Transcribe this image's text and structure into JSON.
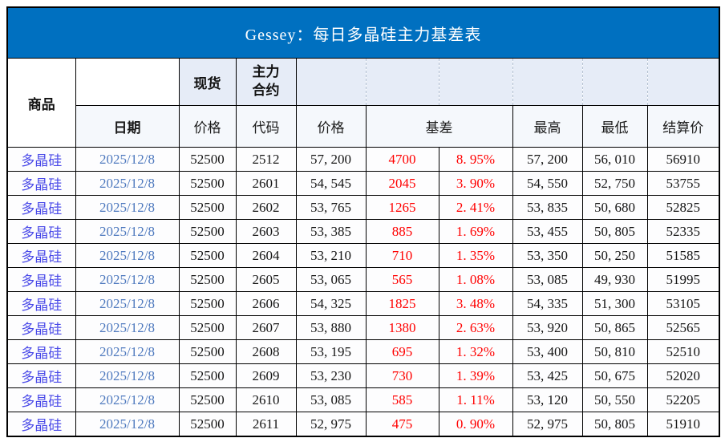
{
  "title": "Gessey：每日多晶硅主力基差表",
  "header": {
    "commodity": "商品",
    "date": "日期",
    "spot_group": "现货",
    "main_contract_group": "主力合约",
    "spot_price": "价格",
    "contract_code": "代码",
    "futures_price": "价格",
    "basis": "基差",
    "high": "最高",
    "low": "最低",
    "settlement": "结算价"
  },
  "rows": [
    {
      "commodity": "多晶硅",
      "date": "2025/12/8",
      "spot_price": "52500",
      "code": "2512",
      "price": "57, 200",
      "basis": "4700",
      "basis_pct": "8. 95%",
      "high": "57, 200",
      "low": "56, 010",
      "settle": "56910"
    },
    {
      "commodity": "多晶硅",
      "date": "2025/12/8",
      "spot_price": "52500",
      "code": "2601",
      "price": "54, 545",
      "basis": "2045",
      "basis_pct": "3. 90%",
      "high": "54, 550",
      "low": "52, 750",
      "settle": "53755"
    },
    {
      "commodity": "多晶硅",
      "date": "2025/12/8",
      "spot_price": "52500",
      "code": "2602",
      "price": "53, 765",
      "basis": "1265",
      "basis_pct": "2. 41%",
      "high": "53, 835",
      "low": "50, 680",
      "settle": "52825"
    },
    {
      "commodity": "多晶硅",
      "date": "2025/12/8",
      "spot_price": "52500",
      "code": "2603",
      "price": "53, 385",
      "basis": "885",
      "basis_pct": "1. 69%",
      "high": "53, 455",
      "low": "50, 805",
      "settle": "52335"
    },
    {
      "commodity": "多晶硅",
      "date": "2025/12/8",
      "spot_price": "52500",
      "code": "2604",
      "price": "53, 210",
      "basis": "710",
      "basis_pct": "1. 35%",
      "high": "53, 350",
      "low": "50, 250",
      "settle": "51585"
    },
    {
      "commodity": "多晶硅",
      "date": "2025/12/8",
      "spot_price": "52500",
      "code": "2605",
      "price": "53, 065",
      "basis": "565",
      "basis_pct": "1. 08%",
      "high": "53, 085",
      "low": "49, 930",
      "settle": "51995"
    },
    {
      "commodity": "多晶硅",
      "date": "2025/12/8",
      "spot_price": "52500",
      "code": "2606",
      "price": "54, 325",
      "basis": "1825",
      "basis_pct": "3. 48%",
      "high": "54, 335",
      "low": "51, 300",
      "settle": "53105"
    },
    {
      "commodity": "多晶硅",
      "date": "2025/12/8",
      "spot_price": "52500",
      "code": "2607",
      "price": "53, 880",
      "basis": "1380",
      "basis_pct": "2. 63%",
      "high": "53, 920",
      "low": "50, 865",
      "settle": "52565"
    },
    {
      "commodity": "多晶硅",
      "date": "2025/12/8",
      "spot_price": "52500",
      "code": "2608",
      "price": "53, 195",
      "basis": "695",
      "basis_pct": "1. 32%",
      "high": "53, 400",
      "low": "50, 810",
      "settle": "52510"
    },
    {
      "commodity": "多晶硅",
      "date": "2025/12/8",
      "spot_price": "52500",
      "code": "2609",
      "price": "53, 230",
      "basis": "730",
      "basis_pct": "1. 39%",
      "high": "53, 425",
      "low": "50, 675",
      "settle": "52020"
    },
    {
      "commodity": "多晶硅",
      "date": "2025/12/8",
      "spot_price": "52500",
      "code": "2610",
      "price": "53, 085",
      "basis": "585",
      "basis_pct": "1. 11%",
      "high": "53, 120",
      "low": "50, 550",
      "settle": "52205"
    },
    {
      "commodity": "多晶硅",
      "date": "2025/12/8",
      "spot_price": "52500",
      "code": "2611",
      "price": "52, 975",
      "basis": "475",
      "basis_pct": "0. 90%",
      "high": "52, 975",
      "low": "50, 805",
      "settle": "51910"
    }
  ],
  "colors": {
    "title_bg": "#0070C0",
    "title_text": "#FFFFFF",
    "header_shade": "#E6ECF7",
    "commodity_text": "#4A4AE8",
    "date_text": "#4E79BE",
    "basis_text": "#FF0000"
  }
}
